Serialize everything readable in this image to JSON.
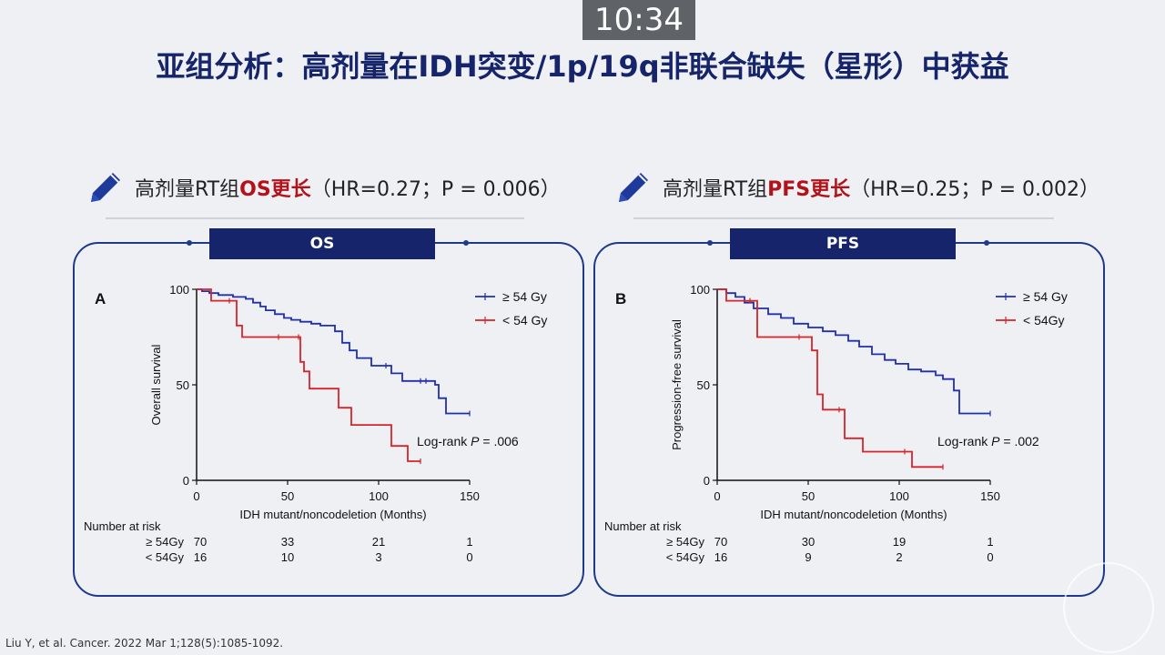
{
  "timer": "10:34",
  "title": "亚组分析：高剂量在IDH突变/1p/19q非联合缺失（星形）中获益",
  "citation": "Liu Y, et al. Cancer. 2022 Mar 1;128(5):1085-1092.",
  "left": {
    "sub_prefix": "高剂量RT组",
    "sub_highlight": "OS更长",
    "sub_suffix": "（HR=0.27；P = 0.006）",
    "banner": "OS"
  },
  "right": {
    "sub_prefix": "高剂量RT组",
    "sub_highlight": "PFS更长",
    "sub_suffix": "（HR=0.25；P = 0.002）",
    "banner": "PFS"
  },
  "colors": {
    "high_dose": "#1f2fb0",
    "low_dose": "#d8232a",
    "banner": "#15246b",
    "title": "#15246b"
  },
  "chart_data": [
    {
      "type": "line",
      "panel_label": "A",
      "xlabel": "IDH mutant/noncodeletion (Months)",
      "ylabel": "Overall survival",
      "xlim": [
        0,
        150
      ],
      "ylim": [
        0,
        100
      ],
      "xticks": [
        0,
        50,
        100,
        150
      ],
      "yticks": [
        0,
        50,
        100
      ],
      "legend_position": "top-right",
      "annotation": {
        "prefix": "Log-rank ",
        "italic": "P",
        "suffix": " = .006"
      },
      "series": [
        {
          "name": "≥ 54 Gy",
          "color": "#1f2fb0",
          "x": [
            0,
            3,
            7,
            12,
            20,
            27,
            31,
            35,
            38,
            43,
            48,
            52,
            57,
            63,
            68,
            76,
            80,
            84,
            88,
            96,
            104,
            107,
            113,
            123,
            126,
            131,
            133,
            137,
            150
          ],
          "y": [
            100,
            99,
            98,
            97,
            96,
            95,
            93,
            91,
            89,
            87,
            85,
            84,
            83,
            82,
            81,
            78,
            72,
            68,
            64,
            60,
            60,
            56,
            52,
            52,
            52,
            50,
            43,
            35,
            35
          ]
        },
        {
          "name": "< 54 Gy",
          "color": "#d8232a",
          "x": [
            0,
            8,
            18,
            22,
            25,
            45,
            56,
            57,
            59,
            62,
            78,
            85,
            107,
            116,
            123
          ],
          "y": [
            100,
            94,
            94,
            81,
            75,
            75,
            75,
            62,
            57,
            48,
            38,
            29,
            18,
            10,
            10
          ]
        }
      ],
      "risk_table": {
        "title": "Number at risk",
        "times": [
          0,
          50,
          100,
          150
        ],
        "rows": [
          {
            "label": "≥ 54Gy",
            "values": [
              70,
              33,
              21,
              1
            ]
          },
          {
            "label": "< 54Gy",
            "values": [
              16,
              10,
              3,
              0
            ]
          }
        ]
      }
    },
    {
      "type": "line",
      "panel_label": "B",
      "xlabel": "IDH mutant/noncodeletion (Months)",
      "ylabel": "Progression-free survival",
      "xlim": [
        0,
        150
      ],
      "ylim": [
        0,
        100
      ],
      "xticks": [
        0,
        50,
        100,
        150
      ],
      "yticks": [
        0,
        50,
        100
      ],
      "legend_position": "top-right",
      "annotation": {
        "prefix": "Log-rank ",
        "italic": "P",
        "suffix": " = .002"
      },
      "series": [
        {
          "name": "≥ 54 Gy",
          "color": "#1f2fb0",
          "x": [
            0,
            5,
            10,
            15,
            20,
            28,
            35,
            42,
            50,
            58,
            65,
            72,
            78,
            85,
            92,
            98,
            105,
            112,
            120,
            124,
            130,
            133,
            150
          ],
          "y": [
            100,
            98,
            96,
            93,
            90,
            87,
            85,
            82,
            80,
            78,
            76,
            73,
            70,
            66,
            63,
            61,
            58,
            57,
            55,
            53,
            47,
            35,
            35
          ]
        },
        {
          "name": "< 54Gy",
          "color": "#d8232a",
          "x": [
            0,
            5,
            18,
            22,
            45,
            52,
            55,
            58,
            67,
            70,
            80,
            103,
            107,
            124
          ],
          "y": [
            100,
            94,
            94,
            75,
            75,
            68,
            45,
            37,
            37,
            22,
            15,
            15,
            7,
            7
          ]
        }
      ],
      "risk_table": {
        "title": "Number at risk",
        "times": [
          0,
          50,
          100,
          150
        ],
        "rows": [
          {
            "label": "≥ 54Gy",
            "values": [
              70,
              30,
              19,
              1
            ]
          },
          {
            "label": "< 54Gy",
            "values": [
              16,
              9,
              2,
              0
            ]
          }
        ]
      }
    }
  ]
}
